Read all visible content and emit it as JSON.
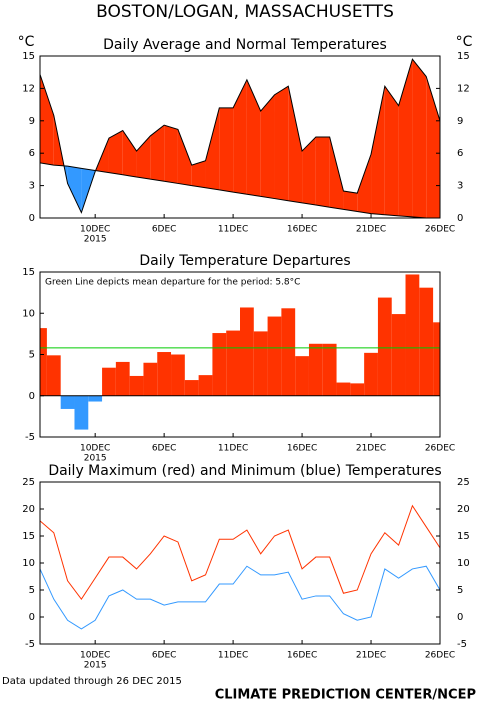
{
  "title": "BOSTON/LOGAN, MASSACHUSETTS",
  "footer_left": "Data updated through 26 DEC 2015",
  "footer_right": "CLIMATE PREDICTION CENTER/NCEP",
  "chart_data": [
    {
      "type": "area",
      "title": "Daily Average and Normal Temperatures",
      "y_unit": "°C",
      "categories": [
        null,
        null,
        null,
        null,
        "10DEC",
        null,
        null,
        null,
        null,
        "6DEC",
        null,
        null,
        null,
        null,
        "11DEC",
        null,
        null,
        null,
        null,
        "16DEC",
        null,
        null,
        null,
        null,
        "21DEC",
        null,
        null,
        null,
        null,
        "26DEC"
      ],
      "year_label": "2015",
      "series": [
        {
          "color": "#000000",
          "values": [
            13.3,
            9.5,
            3.2,
            0.5,
            4.3,
            7.4,
            8.1,
            6.2,
            7.6,
            8.6,
            8.2,
            4.9,
            5.3,
            10.2,
            10.2,
            12.8,
            9.9,
            11.4,
            12.2,
            6.2,
            7.5,
            7.5,
            2.5,
            2.3,
            5.9,
            12.2,
            10.4,
            14.7,
            13.1,
            9.0
          ]
        },
        {
          "color": "#000000",
          "values": [
            5.1,
            4.9,
            4.8,
            4.6,
            4.4,
            4.2,
            4.0,
            3.8,
            3.6,
            3.4,
            3.2,
            3.0,
            2.8,
            2.6,
            2.4,
            2.2,
            2.0,
            1.8,
            1.6,
            1.4,
            1.2,
            1.0,
            0.8,
            0.6,
            0.4,
            0.3,
            0.2,
            0.1,
            0.0,
            0.0
          ]
        }
      ],
      "above_color": "#ff3300",
      "below_color": "#3399ff",
      "ylim": [
        0,
        15
      ],
      "yticks": [
        0,
        3,
        6,
        9,
        12,
        15
      ]
    },
    {
      "type": "bar",
      "title": "Daily Temperature Departures",
      "categories": [
        null,
        null,
        null,
        null,
        "10DEC",
        null,
        null,
        null,
        null,
        "6DEC",
        null,
        null,
        null,
        null,
        "11DEC",
        null,
        null,
        null,
        null,
        "16DEC",
        null,
        null,
        null,
        null,
        "21DEC",
        null,
        null,
        null,
        null,
        "26DEC"
      ],
      "year_label": "2015",
      "values": [
        8.2,
        4.9,
        -1.6,
        -4.1,
        -0.7,
        3.4,
        4.1,
        2.4,
        4.0,
        5.3,
        5.0,
        1.9,
        2.5,
        7.6,
        7.9,
        10.7,
        7.8,
        9.6,
        10.6,
        4.8,
        6.3,
        6.3,
        1.6,
        1.5,
        5.2,
        11.9,
        9.9,
        14.7,
        13.1,
        8.9
      ],
      "color": "#ff3300",
      "negative_color": "#3399ff",
      "mean_line": {
        "value": 5.8,
        "color": "#00cc00"
      },
      "annotation": "Green Line depicts mean departure for the period:  5.8°C",
      "ylim": [
        -5,
        15
      ],
      "yticks": [
        -5,
        0,
        5,
        10,
        15
      ]
    },
    {
      "type": "line",
      "title": "Daily Maximum (red) and Minimum (blue) Temperatures",
      "categories": [
        null,
        null,
        null,
        null,
        "10DEC",
        null,
        null,
        null,
        null,
        "6DEC",
        null,
        null,
        null,
        null,
        "11DEC",
        null,
        null,
        null,
        null,
        "16DEC",
        null,
        null,
        null,
        null,
        "21DEC",
        null,
        null,
        null,
        null,
        "26DEC"
      ],
      "year_label": "2015",
      "series": [
        {
          "color": "#ff3300",
          "values": [
            17.8,
            15.6,
            6.7,
            3.3,
            7.2,
            11.1,
            11.1,
            8.9,
            11.7,
            15.0,
            13.9,
            6.7,
            7.8,
            14.4,
            14.4,
            16.1,
            11.7,
            15.0,
            16.1,
            8.9,
            11.1,
            11.1,
            4.4,
            5.0,
            11.7,
            15.6,
            13.3,
            20.6,
            16.7,
            12.8
          ]
        },
        {
          "color": "#3399ff",
          "values": [
            8.9,
            3.3,
            -0.6,
            -2.2,
            -0.6,
            3.9,
            5.0,
            3.3,
            3.3,
            2.2,
            2.8,
            2.8,
            2.8,
            6.1,
            6.1,
            9.4,
            7.8,
            7.8,
            8.3,
            3.3,
            3.9,
            3.9,
            0.6,
            -0.6,
            0.0,
            8.9,
            7.2,
            8.9,
            9.4,
            5.0
          ]
        }
      ],
      "ylim": [
        -5,
        25
      ],
      "yticks": [
        -5,
        0,
        5,
        10,
        15,
        20,
        25
      ]
    }
  ]
}
